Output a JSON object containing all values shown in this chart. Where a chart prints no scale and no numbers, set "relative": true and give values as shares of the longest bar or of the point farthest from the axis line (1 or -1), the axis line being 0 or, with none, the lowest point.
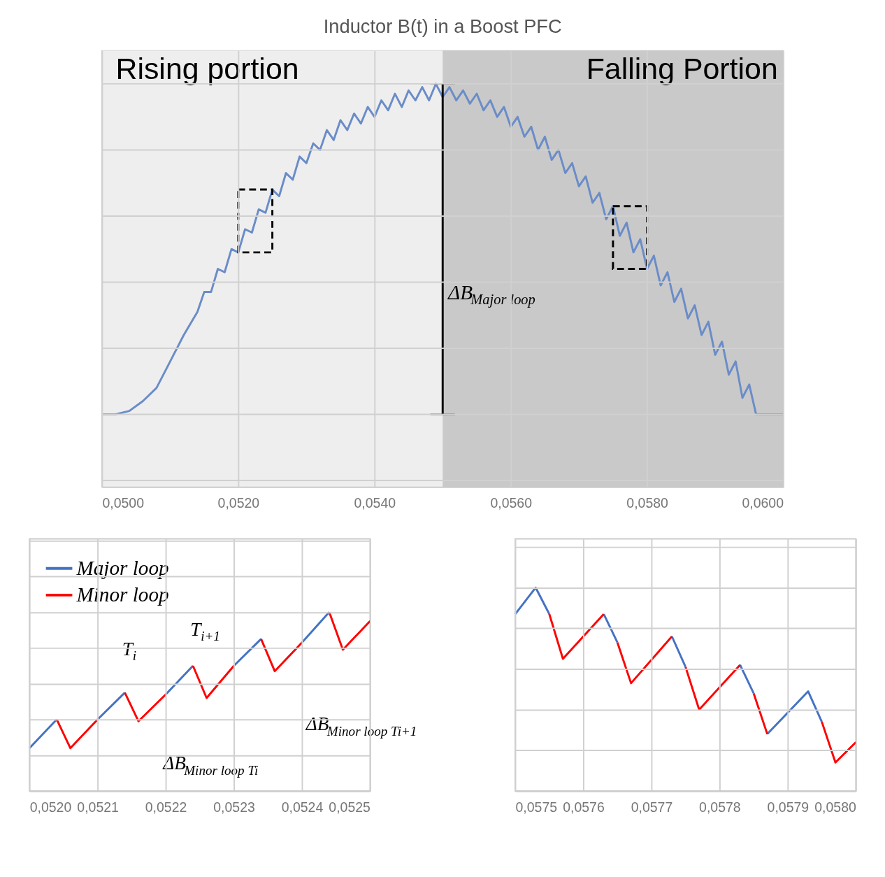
{
  "chart_data": [
    {
      "type": "line",
      "title": "Inductor B(t) in a Boost PFC",
      "relative": true,
      "grid": true,
      "xlim": [
        0.05,
        0.06
      ],
      "xticks": [
        {
          "value": 0.05,
          "label": "0,0500"
        },
        {
          "value": 0.052,
          "label": "0,0520"
        },
        {
          "value": 0.054,
          "label": "0,0540"
        },
        {
          "value": 0.056,
          "label": "0,0560"
        },
        {
          "value": 0.058,
          "label": "0,0580"
        },
        {
          "value": 0.06,
          "label": "0,0600"
        }
      ],
      "bands": [
        {
          "axis": "x",
          "from": 0.05,
          "to": 0.055,
          "label": "Rising portion",
          "color": "#eeeeee"
        },
        {
          "axis": "x",
          "from": 0.055,
          "to": 0.06,
          "label": "Falling Portion",
          "color": "#c9c9c9"
        }
      ],
      "ref_lines": [
        {
          "axis": "x",
          "value": 0.055,
          "label": "ΔB$_{Major loop}$",
          "color": "#000000"
        }
      ],
      "series": [
        {
          "color": "#6a8cc8",
          "x": [
            0.05,
            0.0502,
            0.0504,
            0.0506,
            0.0508,
            0.051,
            0.0512,
            0.0514,
            0.0515,
            0.0516,
            0.0517,
            0.0518,
            0.0519,
            0.052,
            0.0521,
            0.0522,
            0.0523,
            0.0524,
            0.0525,
            0.0526,
            0.0527,
            0.0528,
            0.0529,
            0.053,
            0.0531,
            0.0532,
            0.0533,
            0.0534,
            0.0535,
            0.0536,
            0.0537,
            0.0538,
            0.0539,
            0.054,
            0.0541,
            0.0542,
            0.0543,
            0.0544,
            0.0545,
            0.0546,
            0.0547,
            0.0548,
            0.0549,
            0.055,
            0.0551,
            0.0552,
            0.0553,
            0.0554,
            0.0555,
            0.0556,
            0.0557,
            0.0558,
            0.0559,
            0.056,
            0.0561,
            0.0562,
            0.0563,
            0.0564,
            0.0565,
            0.0566,
            0.0567,
            0.0568,
            0.0569,
            0.057,
            0.0571,
            0.0572,
            0.0573,
            0.0574,
            0.0575,
            0.0576,
            0.0577,
            0.0578,
            0.0579,
            0.058,
            0.0581,
            0.0582,
            0.0583,
            0.0584,
            0.0585,
            0.0586,
            0.0587,
            0.0588,
            0.0589,
            0.059,
            0.0591,
            0.0592,
            0.0593,
            0.0594,
            0.0595,
            0.0596,
            0.0598,
            0.06
          ],
          "values": [
            0,
            0,
            0.01,
            0.04,
            0.08,
            0.16,
            0.24,
            0.31,
            0.37,
            0.37,
            0.44,
            0.43,
            0.5,
            0.49,
            0.56,
            0.55,
            0.62,
            0.61,
            0.68,
            0.66,
            0.73,
            0.71,
            0.78,
            0.76,
            0.82,
            0.8,
            0.86,
            0.83,
            0.89,
            0.86,
            0.91,
            0.88,
            0.93,
            0.9,
            0.95,
            0.92,
            0.97,
            0.93,
            0.98,
            0.95,
            0.99,
            0.95,
            1.0,
            0.96,
            0.99,
            0.95,
            0.98,
            0.94,
            0.97,
            0.92,
            0.95,
            0.9,
            0.93,
            0.87,
            0.9,
            0.84,
            0.87,
            0.8,
            0.84,
            0.77,
            0.8,
            0.73,
            0.76,
            0.69,
            0.72,
            0.64,
            0.67,
            0.59,
            0.63,
            0.54,
            0.58,
            0.49,
            0.53,
            0.44,
            0.48,
            0.39,
            0.43,
            0.34,
            0.38,
            0.29,
            0.33,
            0.24,
            0.28,
            0.18,
            0.22,
            0.12,
            0.16,
            0.05,
            0.09,
            0,
            0,
            0
          ]
        }
      ]
    },
    {
      "type": "line",
      "relative": true,
      "grid": true,
      "legend": "top left",
      "xlim": [
        0.052,
        0.0525
      ],
      "xticks": [
        {
          "value": 0.052,
          "label": "0,0520"
        },
        {
          "value": 0.0521,
          "label": "0,0521"
        },
        {
          "value": 0.0522,
          "label": "0,0522"
        },
        {
          "value": 0.0523,
          "label": "0,0523"
        },
        {
          "value": 0.0524,
          "label": "0,0524"
        },
        {
          "value": 0.0525,
          "label": "0,0525"
        }
      ],
      "annotations": [
        "T$_{i}$",
        "T$_{i+1}$",
        "ΔB$_{Minor loop Ti}$",
        "ΔB$_{Minor loop Ti+1}$"
      ],
      "series": [
        {
          "name": "Major loop",
          "color": "#4472c4",
          "x": [
            0.052,
            0.05204,
            0.05206,
            0.0521,
            0.05214,
            0.05216,
            0.0522,
            0.05224,
            0.05226,
            0.0523,
            0.05234,
            0.05236,
            0.0524,
            0.05244
          ],
          "values": [
            0.24,
            0.4,
            null,
            0.4,
            0.55,
            null,
            0.54,
            0.7,
            null,
            0.7,
            0.85,
            null,
            0.83,
            1.0
          ]
        },
        {
          "name": "Minor loop",
          "color": "#ff0000",
          "x": [
            0.05204,
            0.05206,
            0.0521,
            0.05212,
            0.05214,
            0.05216,
            0.0522,
            0.05222,
            0.05224,
            0.05226,
            0.0523,
            0.05232,
            0.05234,
            0.05236,
            0.0524,
            0.05242,
            0.05244,
            0.05246,
            0.0525
          ],
          "values": [
            0.4,
            0.24,
            0.4,
            null,
            0.55,
            0.39,
            0.54,
            null,
            0.7,
            0.52,
            0.7,
            null,
            0.85,
            0.67,
            0.83,
            null,
            1.0,
            0.79,
            0.95
          ]
        }
      ]
    },
    {
      "type": "line",
      "relative": true,
      "grid": true,
      "xlim": [
        0.0575,
        0.058
      ],
      "xticks": [
        {
          "value": 0.0575,
          "label": "0,0575"
        },
        {
          "value": 0.0576,
          "label": "0,0576"
        },
        {
          "value": 0.0577,
          "label": "0,0577"
        },
        {
          "value": 0.0578,
          "label": "0,0578"
        },
        {
          "value": 0.0579,
          "label": "0,0579"
        },
        {
          "value": 0.058,
          "label": "0,0580"
        }
      ],
      "series": [
        {
          "color": "#4472c4",
          "x": [
            0.0575,
            0.05753,
            0.05755,
            0.0576,
            0.05763,
            0.05765,
            0.0577,
            0.05773,
            0.05775,
            0.0578,
            0.05783,
            0.05785,
            0.05786,
            0.05787,
            0.05793,
            0.05795
          ],
          "values": [
            0.87,
            1.0,
            0.87,
            null,
            0.87,
            0.73,
            null,
            0.76,
            0.61,
            null,
            0.62,
            0.48,
            null,
            0.28,
            0.49,
            0.34
          ]
        },
        {
          "color": "#ff0000",
          "x": [
            0.05755,
            0.05757,
            0.05763,
            0.05764,
            0.05765,
            0.05767,
            0.05773,
            0.05774,
            0.05775,
            0.05777,
            0.05783,
            0.05784,
            0.05785,
            0.05787,
            0.0579,
            0.05795,
            0.05797,
            0.058
          ],
          "values": [
            0.87,
            0.65,
            0.87,
            null,
            0.73,
            0.53,
            0.76,
            null,
            0.61,
            0.4,
            0.62,
            null,
            0.48,
            0.28,
            null,
            0.34,
            0.14,
            0.24
          ]
        }
      ]
    }
  ]
}
